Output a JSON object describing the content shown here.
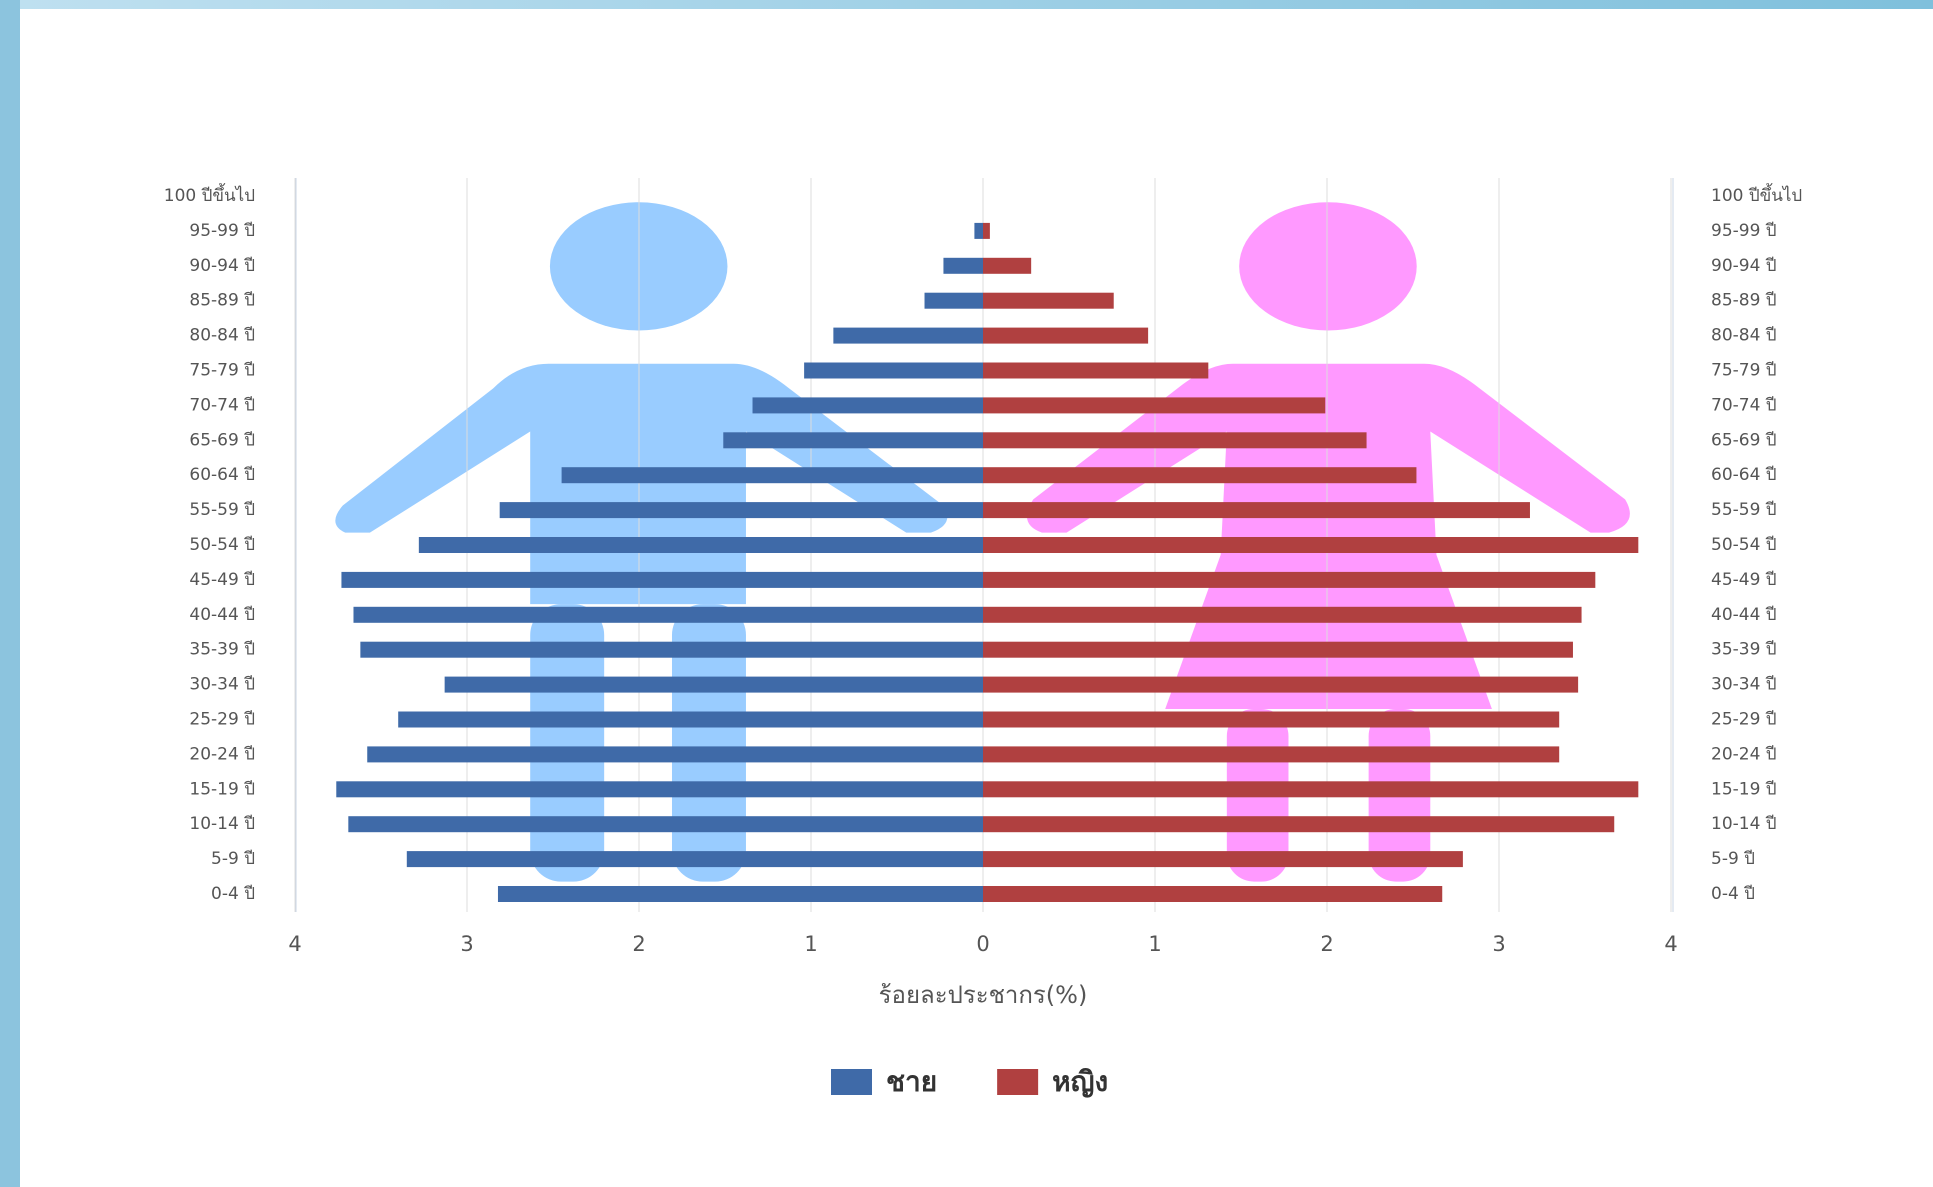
{
  "chart_data": {
    "type": "bar",
    "orientation": "horizontal",
    "stacked": true,
    "x_label": "ร้อยละประชากร(%)",
    "categories": [
      "100 ปีขึ้นไป",
      "95-99 ปี",
      "90-94 ปี",
      "85-89 ปี",
      "80-84 ปี",
      "75-79 ปี",
      "70-74 ปี",
      "65-69 ปี",
      "60-64 ปี",
      "55-59 ปี",
      "50-54 ปี",
      "45-49 ปี",
      "40-44 ปี",
      "35-39 ปี",
      "30-34 ปี",
      "25-29 ปี",
      "20-24 ปี",
      "15-19 ปี",
      "10-14 ปี",
      "5-9 ปี",
      "0-4 ปี"
    ],
    "series": [
      {
        "name": "ชาย",
        "color": "#3f6aa8",
        "values": [
          0,
          -0.05,
          -0.23,
          -0.34,
          -0.87,
          -1.04,
          -1.34,
          -1.51,
          -2.45,
          -2.81,
          -3.28,
          -3.73,
          -3.66,
          -3.62,
          -3.13,
          -3.4,
          -3.58,
          -3.76,
          -3.69,
          -3.35,
          -2.82
        ]
      },
      {
        "name": "หญิง",
        "color": "#b04040",
        "values": [
          0,
          0.04,
          0.28,
          0.76,
          0.96,
          1.31,
          1.99,
          2.23,
          2.52,
          3.18,
          3.81,
          3.56,
          3.48,
          3.43,
          3.46,
          3.35,
          3.35,
          3.81,
          3.67,
          2.79,
          2.67
        ]
      }
    ],
    "xlim": [
      -4,
      4
    ],
    "xticks": [
      {
        "value": -4,
        "label": "4"
      },
      {
        "value": -3,
        "label": "3"
      },
      {
        "value": -2,
        "label": "2"
      },
      {
        "value": -1,
        "label": "1"
      },
      0,
      1,
      2,
      3,
      4
    ],
    "grid": true,
    "legend": "bottom"
  }
}
